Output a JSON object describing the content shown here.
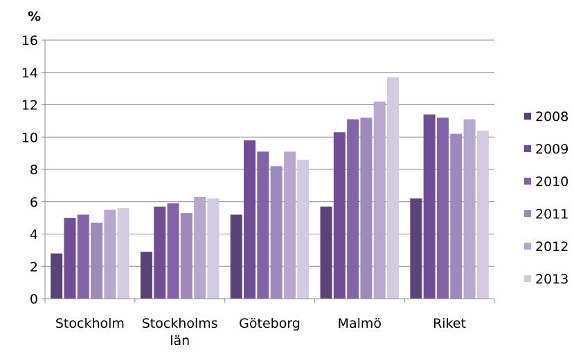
{
  "chart_data": {
    "type": "bar",
    "ylabel": "%",
    "ylim": [
      0,
      16
    ],
    "yticks": [
      "0",
      "2",
      "4",
      "6",
      "8",
      "10",
      "12",
      "14",
      "16"
    ],
    "grid": true,
    "legend_position": "right",
    "categories": [
      [
        "Stockholm"
      ],
      [
        "Stockholms",
        "län"
      ],
      [
        "Göteborg"
      ],
      [
        "Malmö"
      ],
      [
        "Riket"
      ]
    ],
    "series": [
      {
        "name": "2008",
        "color": "#5a4378",
        "values": [
          2.8,
          2.9,
          5.2,
          5.7,
          6.2
        ]
      },
      {
        "name": "2009",
        "color": "#6f4e95",
        "values": [
          5.0,
          5.7,
          9.8,
          10.3,
          11.4
        ]
      },
      {
        "name": "2010",
        "color": "#8363a8",
        "values": [
          5.2,
          5.9,
          9.1,
          11.1,
          11.2
        ]
      },
      {
        "name": "2011",
        "color": "#9c8abb",
        "values": [
          4.7,
          5.3,
          8.2,
          11.2,
          10.2
        ]
      },
      {
        "name": "2012",
        "color": "#b7a8cf",
        "values": [
          5.5,
          6.3,
          9.1,
          12.2,
          11.1
        ]
      },
      {
        "name": "2013",
        "color": "#d3cbe2",
        "values": [
          5.6,
          6.2,
          8.6,
          13.7,
          10.4
        ]
      }
    ]
  }
}
